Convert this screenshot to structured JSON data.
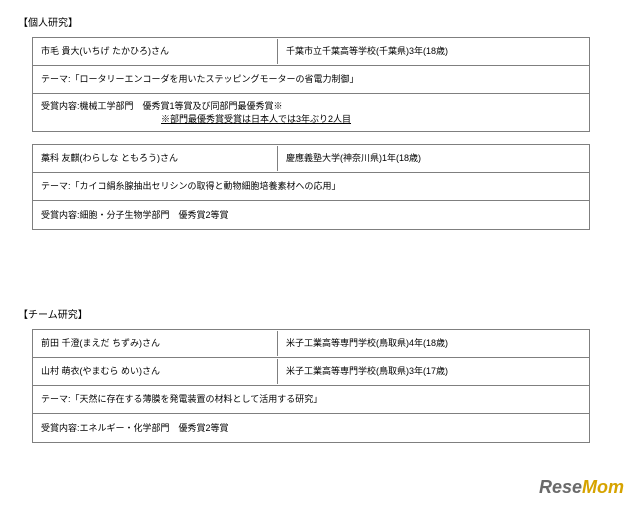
{
  "section1": {
    "title": "【個人研究】"
  },
  "t1": {
    "name": "市毛 貴大(いちげ たかひろ)さん",
    "school": "千葉市立千葉高等学校(千葉県)3年(18歳)",
    "theme": "テーマ:「ロータリーエンコーダを用いたステッピングモーターの省電力制御」",
    "award_label": "受賞内容:機械工学部門　優秀賞1等賞及び同部門最優秀賞※",
    "note": "※部門最優秀賞受賞は日本人では3年ぶり2人目"
  },
  "t2": {
    "name": "藁科 友麒(わらしな ともろう)さん",
    "school": "慶應義塾大学(神奈川県)1年(18歳)",
    "theme": "テーマ:「カイコ絹糸腺抽出セリシンの取得と動物細胞培養素材への応用」",
    "award": "受賞内容:細胞・分子生物学部門　優秀賞2等賞"
  },
  "section2": {
    "title": "【チーム研究】"
  },
  "t3": {
    "name1": "前田 千澄(まえだ ちずみ)さん",
    "school1": "米子工業高等専門学校(鳥取県)4年(18歳)",
    "name2": "山村 萌衣(やまむら めい)さん",
    "school2": "米子工業高等専門学校(鳥取県)3年(17歳)",
    "theme": "テーマ:「天然に存在する薄膜を発電装置の材料として活用する研究」",
    "award": "受賞内容:エネルギー・化学部門　優秀賞2等賞"
  },
  "watermark": {
    "part1": "Rese",
    "part2": "Mom"
  }
}
